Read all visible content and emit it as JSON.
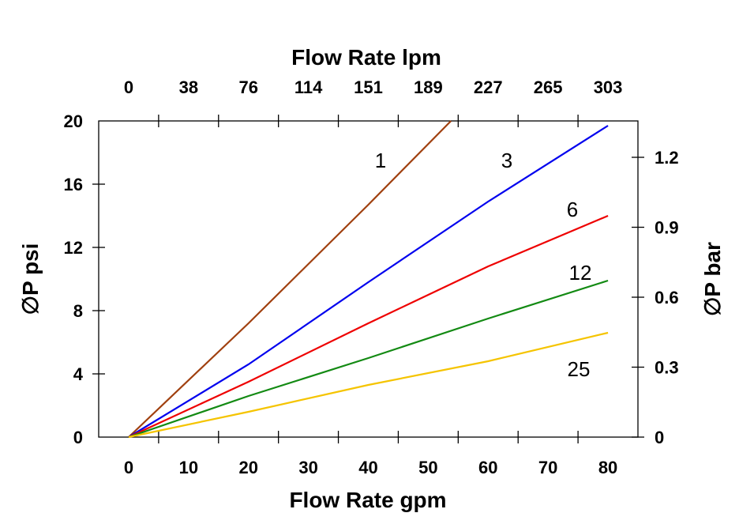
{
  "chart_data": {
    "type": "line",
    "xlabel": "Flow Rate gpm",
    "x2label": "Flow Rate lpm",
    "ylabel": "∅P psi",
    "y2label": "∅P bar",
    "xlim": [
      -5,
      85
    ],
    "ylim": [
      0,
      20
    ],
    "y2lim": [
      0,
      1.356
    ],
    "xticks": [
      "0",
      "10",
      "20",
      "30",
      "40",
      "50",
      "60",
      "70",
      "80"
    ],
    "x2ticks": [
      "0",
      "38",
      "76",
      "114",
      "151",
      "189",
      "227",
      "265",
      "303"
    ],
    "yticks": [
      "0",
      "4",
      "8",
      "12",
      "16",
      "20"
    ],
    "y2ticks": [
      "0",
      "0.3",
      "0.6",
      "0.9",
      "1.2"
    ],
    "grid": false,
    "series": [
      {
        "name": "1",
        "color": "#a0400f",
        "points": [
          [
            0,
            0
          ],
          [
            20,
            7.2
          ],
          [
            40,
            14.7
          ],
          [
            53.8,
            20
          ]
        ]
      },
      {
        "name": "3",
        "color": "#0000ee",
        "points": [
          [
            0,
            0
          ],
          [
            20,
            4.6
          ],
          [
            40,
            9.8
          ],
          [
            60,
            14.9
          ],
          [
            80,
            19.7
          ]
        ]
      },
      {
        "name": "6",
        "color": "#ee0000",
        "points": [
          [
            0,
            0
          ],
          [
            20,
            3.5
          ],
          [
            40,
            7.2
          ],
          [
            50,
            9.0
          ],
          [
            60,
            10.8
          ],
          [
            80,
            14.0
          ]
        ]
      },
      {
        "name": "12",
        "color": "#138a13",
        "points": [
          [
            0,
            0
          ],
          [
            20,
            2.6
          ],
          [
            40,
            5.0
          ],
          [
            60,
            7.5
          ],
          [
            80,
            9.9
          ]
        ]
      },
      {
        "name": "25",
        "color": "#f5c400",
        "points": [
          [
            0,
            0
          ],
          [
            20,
            1.6
          ],
          [
            40,
            3.3
          ],
          [
            60,
            4.8
          ],
          [
            80,
            6.6
          ]
        ]
      }
    ]
  }
}
